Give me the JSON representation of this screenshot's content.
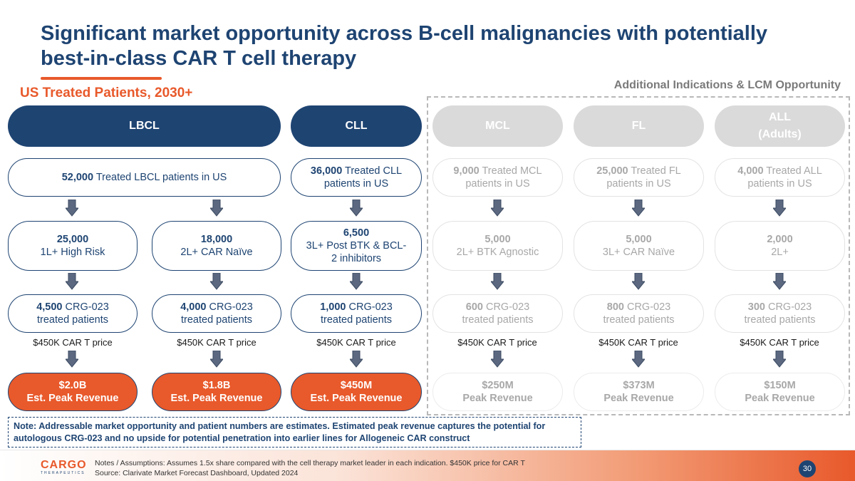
{
  "title": "Significant market opportunity across B-cell malignancies with potentially best-in-class CAR T cell therapy",
  "us_section_title": "US Treated Patients, 2030+",
  "additional_section_title": "Additional Indications & LCM Opportunity",
  "indications": {
    "lbcl": {
      "header": "LBCL",
      "treated_bold": "52,000",
      "treated_text": " Treated LBCL patients in US",
      "sub": [
        {
          "count": "25,000",
          "label": "1L+ High Risk",
          "crg_bold": "4,500",
          "crg_text": " CRG-023",
          "crg_line2": "treated patients",
          "price": "$450K CAR T price",
          "revenue": "$2.0B",
          "revenue_label": "Est. Peak Revenue"
        },
        {
          "count": "18,000",
          "label": "2L+ CAR Naïve",
          "crg_bold": "4,000",
          "crg_text": " CRG-023",
          "crg_line2": "treated patients",
          "price": "$450K CAR T price",
          "revenue": "$1.8B",
          "revenue_label": "Est. Peak Revenue"
        }
      ]
    },
    "cll": {
      "header": "CLL",
      "treated_bold": "36,000",
      "treated_text": " Treated CLL",
      "treated_line2": "patients in US",
      "count": "6,500",
      "label_line1": "3L+ Post BTK & BCL-",
      "label_line2": "2 inhibitors",
      "crg_bold": "1,000",
      "crg_text": " CRG-023",
      "crg_line2": "treated patients",
      "price": "$450K CAR T price",
      "revenue": "$450M",
      "revenue_label": "Est. Peak Revenue"
    },
    "mcl": {
      "header": "MCL",
      "treated_bold": "9,000",
      "treated_text": " Treated MCL",
      "treated_line2": "patients in US",
      "count": "5,000",
      "label": "2L+ BTK Agnostic",
      "crg_bold": "600",
      "crg_text": " CRG-023",
      "crg_line2": "treated patients",
      "price": "$450K CAR T price",
      "revenue": "$250M",
      "revenue_label": "Peak Revenue"
    },
    "fl": {
      "header": "FL",
      "treated_bold": "25,000",
      "treated_text": " Treated FL",
      "treated_line2": "patients in US",
      "count": "5,000",
      "label": "3L+ CAR Naïve",
      "crg_bold": "800",
      "crg_text": " CRG-023",
      "crg_line2": "treated patients",
      "price": "$450K CAR T price",
      "revenue": "$373M",
      "revenue_label": "Peak Revenue"
    },
    "all": {
      "header_line1": "ALL",
      "header_line2": "(Adults)",
      "treated_bold": "4,000",
      "treated_text": " Treated ALL",
      "treated_line2": "patients in US",
      "count": "2,000",
      "label": "2L+",
      "crg_bold": "300",
      "crg_text": " CRG-023",
      "crg_line2": "treated patients",
      "price": "$450K CAR T price",
      "revenue": "$150M",
      "revenue_label": "Peak Revenue"
    }
  },
  "note": "Note: Addressable market opportunity and patient numbers are estimates. Estimated peak revenue captures the potential for autologous CRG-023 and no upside for potential penetration into earlier lines for Allogeneic CAR construct",
  "footer": {
    "logo_main": "CARGO",
    "logo_sub": "THERAPEUTICS",
    "notes_line1": "Notes / Assumptions: Assumes 1.5x share compared with the cell therapy market leader in each indication. $450K price for CAR T",
    "notes_line2": "Source: Clarivate Market Forecast Dashboard, Updated 2024",
    "page_number": "30"
  },
  "colors": {
    "navy": "#1e4472",
    "orange": "#e8592b",
    "grey": "#dadada"
  }
}
